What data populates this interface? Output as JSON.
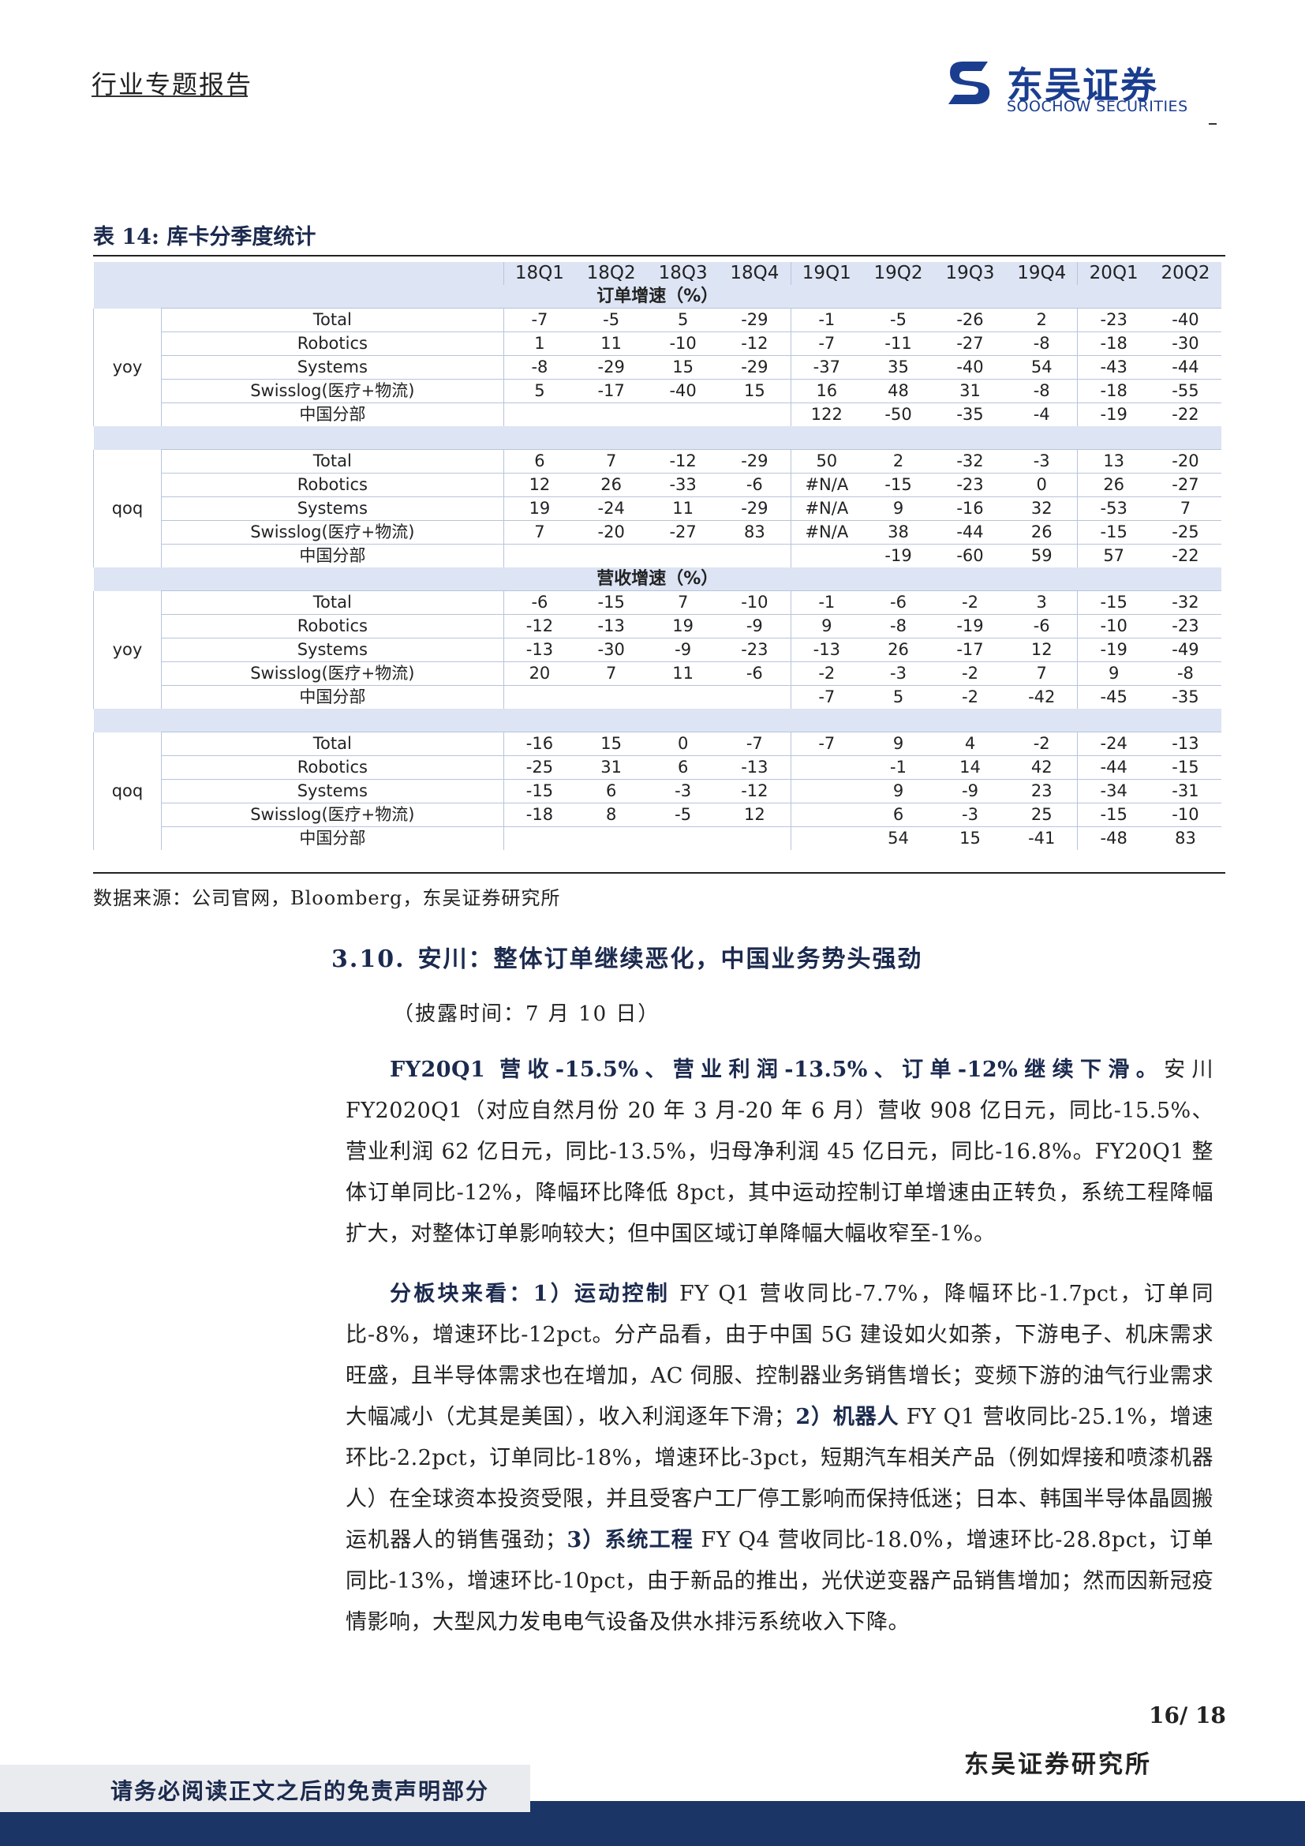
{
  "header": {
    "report_type": "行业专题报告",
    "brand_cn": "东吴证券",
    "brand_en": "SOOCHOW SECURITIES",
    "brand_mark": "SCS"
  },
  "table": {
    "caption": "表 14:  库卡分季度统计",
    "columns": [
      "18Q1",
      "18Q2",
      "18Q3",
      "18Q4",
      "19Q1",
      "19Q2",
      "19Q3",
      "19Q4",
      "20Q1",
      "20Q2"
    ],
    "sections": [
      {
        "title": "订单增速（%）",
        "groups": [
          {
            "label": "yoy",
            "rows": [
              {
                "name": "Total",
                "values": [
                  "-7",
                  "-5",
                  "5",
                  "-29",
                  "-1",
                  "-5",
                  "-26",
                  "2",
                  "-23",
                  "-40"
                ]
              },
              {
                "name": "Robotics",
                "values": [
                  "1",
                  "11",
                  "-10",
                  "-12",
                  "-7",
                  "-11",
                  "-27",
                  "-8",
                  "-18",
                  "-30"
                ]
              },
              {
                "name": "Systems",
                "values": [
                  "-8",
                  "-29",
                  "15",
                  "-29",
                  "-37",
                  "35",
                  "-40",
                  "54",
                  "-43",
                  "-44"
                ]
              },
              {
                "name": "Swisslog(医疗+物流)",
                "values": [
                  "5",
                  "-17",
                  "-40",
                  "15",
                  "16",
                  "48",
                  "31",
                  "-8",
                  "-18",
                  "-55"
                ]
              },
              {
                "name": "中国分部",
                "values": [
                  "",
                  "",
                  "",
                  "",
                  "122",
                  "-50",
                  "-35",
                  "-4",
                  "-19",
                  "-22"
                ]
              }
            ]
          },
          {
            "label": "qoq",
            "rows": [
              {
                "name": "Total",
                "values": [
                  "6",
                  "7",
                  "-12",
                  "-29",
                  "50",
                  "2",
                  "-32",
                  "-3",
                  "13",
                  "-20"
                ]
              },
              {
                "name": "Robotics",
                "values": [
                  "12",
                  "26",
                  "-33",
                  "-6",
                  "#N/A",
                  "-15",
                  "-23",
                  "0",
                  "26",
                  "-27"
                ]
              },
              {
                "name": "Systems",
                "values": [
                  "19",
                  "-24",
                  "11",
                  "-29",
                  "#N/A",
                  "9",
                  "-16",
                  "32",
                  "-53",
                  "7"
                ]
              },
              {
                "name": "Swisslog(医疗+物流)",
                "values": [
                  "7",
                  "-20",
                  "-27",
                  "83",
                  "#N/A",
                  "38",
                  "-44",
                  "26",
                  "-15",
                  "-25"
                ]
              },
              {
                "name": "中国分部",
                "values": [
                  "",
                  "",
                  "",
                  "",
                  "",
                  "-19",
                  "-60",
                  "59",
                  "57",
                  "-22"
                ]
              }
            ]
          }
        ]
      },
      {
        "title": "营收增速（%）",
        "groups": [
          {
            "label": "yoy",
            "rows": [
              {
                "name": "Total",
                "values": [
                  "-6",
                  "-15",
                  "7",
                  "-10",
                  "-1",
                  "-6",
                  "-2",
                  "3",
                  "-15",
                  "-32"
                ]
              },
              {
                "name": "Robotics",
                "values": [
                  "-12",
                  "-13",
                  "19",
                  "-9",
                  "9",
                  "-8",
                  "-19",
                  "-6",
                  "-10",
                  "-23"
                ]
              },
              {
                "name": "Systems",
                "values": [
                  "-13",
                  "-30",
                  "-9",
                  "-23",
                  "-13",
                  "26",
                  "-17",
                  "12",
                  "-19",
                  "-49"
                ]
              },
              {
                "name": "Swisslog(医疗+物流)",
                "values": [
                  "20",
                  "7",
                  "11",
                  "-6",
                  "-2",
                  "-3",
                  "-2",
                  "7",
                  "9",
                  "-8"
                ]
              },
              {
                "name": "中国分部",
                "values": [
                  "",
                  "",
                  "",
                  "",
                  "-7",
                  "5",
                  "-2",
                  "-42",
                  "-45",
                  "-35"
                ]
              }
            ]
          },
          {
            "label": "qoq",
            "rows": [
              {
                "name": "Total",
                "values": [
                  "-16",
                  "15",
                  "0",
                  "-7",
                  "-7",
                  "9",
                  "4",
                  "-2",
                  "-24",
                  "-13"
                ]
              },
              {
                "name": "Robotics",
                "values": [
                  "-25",
                  "31",
                  "6",
                  "-13",
                  "",
                  "-1",
                  "14",
                  "42",
                  "-44",
                  "-15"
                ]
              },
              {
                "name": "Systems",
                "values": [
                  "-15",
                  "6",
                  "-3",
                  "-12",
                  "",
                  "9",
                  "-9",
                  "23",
                  "-34",
                  "-31"
                ]
              },
              {
                "name": "Swisslog(医疗+物流)",
                "values": [
                  "-18",
                  "8",
                  "-5",
                  "12",
                  "",
                  "6",
                  "-3",
                  "25",
                  "-15",
                  "-10"
                ]
              },
              {
                "name": "中国分部",
                "values": [
                  "",
                  "",
                  "",
                  "",
                  "",
                  "54",
                  "15",
                  "-41",
                  "-48",
                  "83"
                ]
              }
            ]
          }
        ]
      }
    ],
    "source": "数据来源：公司官网，Bloomberg，东吴证券研究所"
  },
  "section": {
    "number": "3.10.",
    "title": "安川：整体订单继续恶化，中国业务势头强劲",
    "disclosure": "（披露时间：7 月 10 日）"
  },
  "paragraphs": {
    "p1_lead": "FY20Q1 营收-15.5%、营业利润-13.5%、订单-12%继续下滑。",
    "p1_body": "安川 FY2020Q1（对应自然月份 20 年 3 月-20 年 6 月）营收 908 亿日元，同比-15.5%、营业利润 62 亿日元，同比-13.5%，归母净利润 45 亿日元，同比-16.8%。FY20Q1 整体订单同比-12%，降幅环比降低 8pct，其中运动控制订单增速由正转负，系统工程降幅扩大，对整体订单影响较大；但中国区域订单降幅大幅收窄至-1%。",
    "p2_lead": "分板块来看：1）运动控制",
    "p2_body1": " FY Q1 营收同比-7.7%，降幅环比-1.7pct，订单同比-8%，增速环比-12pct。分产品看，由于中国 5G 建设如火如荼，下游电子、机床需求旺盛，且半导体需求也在增加，AC 伺服、控制器业务销售增长；变频下游的油气行业需求大幅减小（尤其是美国），收入利润逐年下滑；",
    "p2_lead2": "2）机器人",
    "p2_body2": " FY Q1 营收同比-25.1%，增速环比-2.2pct，订单同比-18%，增速环比-3pct，短期汽车相关产品（例如焊接和喷漆机器人）在全球资本投资受限，并且受客户工厂停工影响而保持低迷；日本、韩国半导体晶圆搬运机器人的销售强劲；",
    "p2_lead3": "3）系统工程",
    "p2_body3": " FY Q4 营收同比-18.0%，增速环比-28.8pct，订单同比-13%，增速环比-10pct，由于新品的推出，光伏逆变器产品销售增加；然而因新冠疫情影响，大型风力发电电气设备及供水排污系统收入下降。"
  },
  "footer": {
    "page": "16/ 18",
    "org": "东吴证券研究所",
    "disclaimer": "请务必阅读正文之后的免责声明部分"
  },
  "colors": {
    "brand_blue": "#1a3d8f",
    "footer_navy": "#1a3566",
    "table_band": "#dde4f4"
  }
}
